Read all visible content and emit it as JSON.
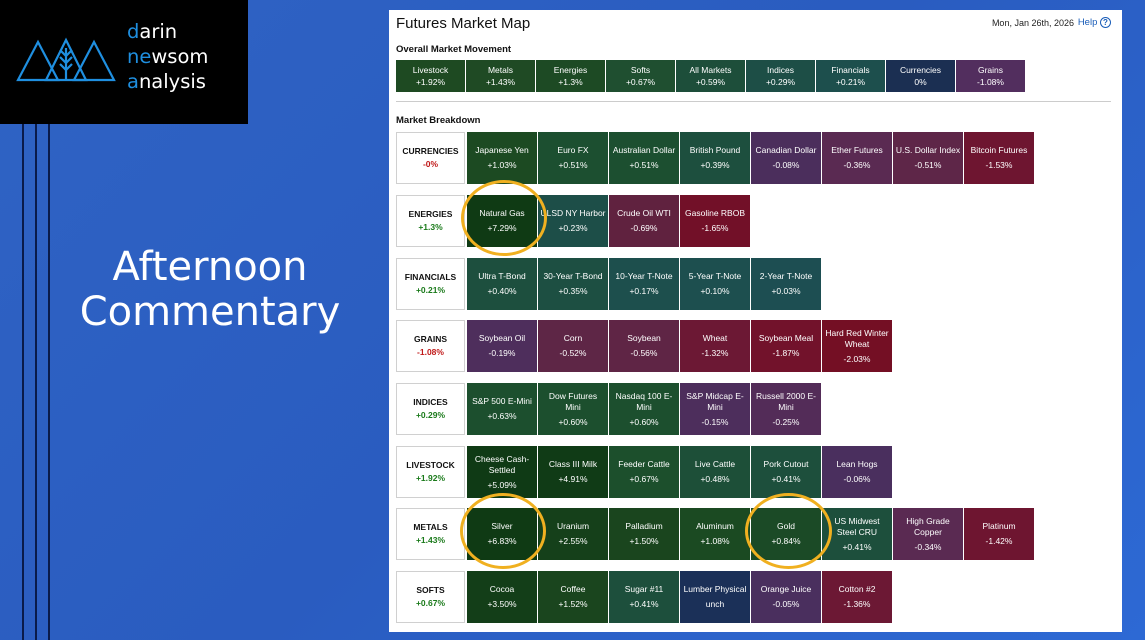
{
  "logo": {
    "line1_hl": "d",
    "line1": "arin",
    "line2_hl": "ne",
    "line2": "wsom",
    "line3_hl": "a",
    "line3": "nalysis"
  },
  "slide_title": {
    "line1": "Afternoon",
    "line2": "Commentary"
  },
  "panel": {
    "title": "Futures Market Map",
    "date": "Mon, Jan 26th, 2026",
    "help": "Help",
    "help_glyph": "?"
  },
  "overall": {
    "label": "Overall Market Movement",
    "tiles": [
      {
        "name": "Livestock",
        "change": "+1.92%",
        "color": "#1e4a22"
      },
      {
        "name": "Metals",
        "change": "+1.43%",
        "color": "#1f4a24"
      },
      {
        "name": "Energies",
        "change": "+1.3%",
        "color": "#1d4a24"
      },
      {
        "name": "Softs",
        "change": "+0.67%",
        "color": "#1f4f30"
      },
      {
        "name": "All Markets",
        "change": "+0.59%",
        "color": "#1d4e3a"
      },
      {
        "name": "Indices",
        "change": "+0.29%",
        "color": "#1d4e46"
      },
      {
        "name": "Financials",
        "change": "+0.21%",
        "color": "#1d4f4d"
      },
      {
        "name": "Currencies",
        "change": "0%",
        "color": "#1b2f52"
      },
      {
        "name": "Grains",
        "change": "-1.08%",
        "color": "#522e5e"
      }
    ]
  },
  "breakdown": {
    "label": "Market Breakdown",
    "rows": [
      {
        "sector": "CURRENCIES",
        "change": "-0%",
        "sign": "neg",
        "tiles": [
          {
            "name": "Japanese Yen",
            "change": "+1.03%",
            "color": "#1c4a22"
          },
          {
            "name": "Euro FX",
            "change": "+0.51%",
            "color": "#1c4f30"
          },
          {
            "name": "Australian Dollar",
            "change": "+0.51%",
            "color": "#1c4f30"
          },
          {
            "name": "British Pound",
            "change": "+0.39%",
            "color": "#1d4f3e"
          },
          {
            "name": "Canadian Dollar",
            "change": "-0.08%",
            "color": "#4b2e5c"
          },
          {
            "name": "Ether Futures",
            "change": "-0.36%",
            "color": "#5a2a52"
          },
          {
            "name": "U.S. Dollar Index",
            "change": "-0.51%",
            "color": "#5e2648"
          },
          {
            "name": "Bitcoin Futures",
            "change": "-1.53%",
            "color": "#6e1530"
          }
        ]
      },
      {
        "sector": "ENERGIES",
        "change": "+1.3%",
        "sign": "pos",
        "tiles": [
          {
            "name": "Natural Gas",
            "change": "+7.29%",
            "color": "#0f3a14"
          },
          {
            "name": "ULSD NY Harbor",
            "change": "+0.23%",
            "color": "#1d4e48"
          },
          {
            "name": "Crude Oil WTI",
            "change": "-0.69%",
            "color": "#60223f"
          },
          {
            "name": "Gasoline RBOB",
            "change": "-1.65%",
            "color": "#721028"
          }
        ]
      },
      {
        "sector": "FINANCIALS",
        "change": "+0.21%",
        "sign": "pos",
        "tiles": [
          {
            "name": "Ultra T-Bond",
            "change": "+0.40%",
            "color": "#1d4f3e"
          },
          {
            "name": "30-Year T-Bond",
            "change": "+0.35%",
            "color": "#1d4f42"
          },
          {
            "name": "10-Year T-Note",
            "change": "+0.17%",
            "color": "#1d4f4d"
          },
          {
            "name": "5-Year T-Note",
            "change": "+0.10%",
            "color": "#1d4f4f"
          },
          {
            "name": "2-Year T-Note",
            "change": "+0.03%",
            "color": "#1d4e52"
          }
        ]
      },
      {
        "sector": "GRAINS",
        "change": "-1.08%",
        "sign": "neg",
        "tiles": [
          {
            "name": "Soybean Oil",
            "change": "-0.19%",
            "color": "#4e2e5c"
          },
          {
            "name": "Corn",
            "change": "-0.52%",
            "color": "#5e2646"
          },
          {
            "name": "Soybean",
            "change": "-0.56%",
            "color": "#5f2545"
          },
          {
            "name": "Wheat",
            "change": "-1.32%",
            "color": "#6c1834"
          },
          {
            "name": "Soybean Meal",
            "change": "-1.87%",
            "color": "#72122b"
          },
          {
            "name": "Hard Red Winter Wheat",
            "change": "-2.03%",
            "color": "#740f24"
          }
        ]
      },
      {
        "sector": "INDICES",
        "change": "+0.29%",
        "sign": "pos",
        "tiles": [
          {
            "name": "S&P 500 E-Mini",
            "change": "+0.63%",
            "color": "#1c4f2e"
          },
          {
            "name": "Dow Futures Mini",
            "change": "+0.60%",
            "color": "#1c4f2e"
          },
          {
            "name": "Nasdaq 100 E-Mini",
            "change": "+0.60%",
            "color": "#1c4f2e"
          },
          {
            "name": "S&P Midcap E-Mini",
            "change": "-0.15%",
            "color": "#4d2e5c"
          },
          {
            "name": "Russell 2000 E-Mini",
            "change": "-0.25%",
            "color": "#532c58"
          }
        ]
      },
      {
        "sector": "LIVESTOCK",
        "change": "+1.92%",
        "sign": "pos",
        "tiles": [
          {
            "name": "Cheese Cash-Settled",
            "change": "+5.09%",
            "color": "#0f3a15"
          },
          {
            "name": "Class III Milk",
            "change": "+4.91%",
            "color": "#103b16"
          },
          {
            "name": "Feeder Cattle",
            "change": "+0.67%",
            "color": "#1c4f2c"
          },
          {
            "name": "Live Cattle",
            "change": "+0.48%",
            "color": "#1d4f38"
          },
          {
            "name": "Pork Cutout",
            "change": "+0.41%",
            "color": "#1d4f3c"
          },
          {
            "name": "Lean Hogs",
            "change": "-0.06%",
            "color": "#4a2f5e"
          }
        ]
      },
      {
        "sector": "METALS",
        "change": "+1.43%",
        "sign": "pos",
        "tiles": [
          {
            "name": "Silver",
            "change": "+6.83%",
            "color": "#0f3a14"
          },
          {
            "name": "Uranium",
            "change": "+2.55%",
            "color": "#15401a"
          },
          {
            "name": "Palladium",
            "change": "+1.50%",
            "color": "#1a451e"
          },
          {
            "name": "Aluminum",
            "change": "+1.08%",
            "color": "#1b4a22"
          },
          {
            "name": "Gold",
            "change": "+0.84%",
            "color": "#1b4a26"
          },
          {
            "name": "US Midwest Steel CRU",
            "change": "+0.41%",
            "color": "#1d4f3c"
          },
          {
            "name": "High Grade Copper",
            "change": "-0.34%",
            "color": "#5a2a52"
          },
          {
            "name": "Platinum",
            "change": "-1.42%",
            "color": "#6e1530"
          }
        ]
      },
      {
        "sector": "SOFTS",
        "change": "+0.67%",
        "sign": "pos",
        "tiles": [
          {
            "name": "Cocoa",
            "change": "+3.50%",
            "color": "#133e18"
          },
          {
            "name": "Coffee",
            "change": "+1.52%",
            "color": "#1a451e"
          },
          {
            "name": "Sugar #11",
            "change": "+0.41%",
            "color": "#1d4f3c"
          },
          {
            "name": "Lumber Physical",
            "change": "unch",
            "color": "#1b3058"
          },
          {
            "name": "Orange Juice",
            "change": "-0.05%",
            "color": "#4a2f5e"
          },
          {
            "name": "Cotton #2",
            "change": "-1.36%",
            "color": "#6c1834"
          }
        ]
      }
    ]
  },
  "highlight_color": "#f0b020"
}
